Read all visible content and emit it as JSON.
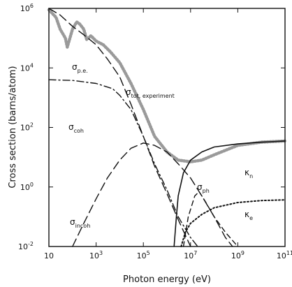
{
  "chart_data": {
    "type": "line",
    "xlabel": "Photon energy (eV)",
    "ylabel": "Cross section (barns/atom)",
    "x_scale": "log",
    "y_scale": "log",
    "xlim": [
      10,
      100000000000
    ],
    "ylim": [
      0.01,
      1000000
    ],
    "x_ticks": [
      {
        "value": 10,
        "base": "10",
        "exp": ""
      },
      {
        "value": 1000,
        "base": "10",
        "exp": "3"
      },
      {
        "value": 100000,
        "base": "10",
        "exp": "5"
      },
      {
        "value": 10000000,
        "base": "10",
        "exp": "7"
      },
      {
        "value": 1000000000,
        "base": "10",
        "exp": "9"
      },
      {
        "value": 100000000000,
        "base": "10",
        "exp": "11"
      }
    ],
    "y_ticks": [
      {
        "value": 0.01,
        "base": "10",
        "exp": "-2"
      },
      {
        "value": 1,
        "base": "10",
        "exp": "0"
      },
      {
        "value": 100,
        "base": "10",
        "exp": "2"
      },
      {
        "value": 10000,
        "base": "10",
        "exp": "4"
      },
      {
        "value": 1000000,
        "base": "10",
        "exp": "6"
      }
    ],
    "grid": false,
    "legend": "none",
    "series": [
      {
        "label": {
          "main": "σ",
          "sub": "tot, experiment"
        },
        "style": "dotted-band",
        "points": [
          [
            10,
            900000
          ],
          [
            20,
            500000
          ],
          [
            30,
            200000
          ],
          [
            50,
            100000
          ],
          [
            60,
            50000
          ],
          [
            100,
            200000
          ],
          [
            150,
            350000
          ],
          [
            200,
            300000
          ],
          [
            300,
            200000
          ],
          [
            400,
            90000
          ],
          [
            600,
            120000
          ],
          [
            1000,
            80000
          ],
          [
            2000,
            60000
          ],
          [
            4000,
            35000
          ],
          [
            10000,
            15000
          ],
          [
            30000,
            3000
          ],
          [
            100000,
            400
          ],
          [
            300000,
            50
          ],
          [
            1000000,
            15
          ],
          [
            3000000,
            8
          ],
          [
            10000000,
            7
          ],
          [
            30000000,
            8
          ],
          [
            100000000,
            12
          ],
          [
            1000000000,
            25
          ],
          [
            10000000000,
            32
          ],
          [
            100000000000,
            35
          ]
        ]
      },
      {
        "label": {
          "main": "σ",
          "sub": "coh"
        },
        "style": "dash-dot",
        "points": [
          [
            10,
            4000
          ],
          [
            100,
            3800
          ],
          [
            1000,
            3000
          ],
          [
            5000,
            2000
          ],
          [
            10000,
            1200
          ],
          [
            30000,
            400
          ],
          [
            100000,
            50
          ],
          [
            300000,
            6
          ],
          [
            1000000,
            0.8
          ],
          [
            3000000,
            0.1
          ],
          [
            10000000,
            0.02
          ],
          [
            20000000,
            0.01
          ]
        ]
      },
      {
        "label": {
          "main": "σ",
          "sub": "p.e."
        },
        "style": "long-dash",
        "points": [
          [
            10,
            1000000
          ],
          [
            30,
            600000
          ],
          [
            100,
            250000
          ],
          [
            300,
            130000
          ],
          [
            1000,
            60000
          ],
          [
            3000,
            20000
          ],
          [
            10000,
            5000
          ],
          [
            30000,
            600
          ],
          [
            100000,
            50
          ],
          [
            300000,
            5
          ],
          [
            1000000,
            0.6
          ],
          [
            3000000,
            0.08
          ],
          [
            10000000,
            0.01
          ]
        ]
      },
      {
        "label": {
          "main": "σ",
          "sub": "incoh"
        },
        "style": "long-dash",
        "points": [
          [
            100,
            0.01
          ],
          [
            300,
            0.06
          ],
          [
            1000,
            0.4
          ],
          [
            3000,
            2
          ],
          [
            10000,
            8
          ],
          [
            30000,
            20
          ],
          [
            100000,
            30
          ],
          [
            300000,
            25
          ],
          [
            1000000,
            15
          ],
          [
            3000000,
            6
          ],
          [
            10000000,
            2
          ],
          [
            30000000,
            0.5
          ],
          [
            100000000,
            0.1
          ],
          [
            300000000,
            0.02
          ],
          [
            600000000,
            0.01
          ]
        ]
      },
      {
        "label": {
          "main": "κ",
          "sub": "n"
        },
        "style": "solid",
        "points": [
          [
            2000000,
            0.01
          ],
          [
            2500000,
            0.1
          ],
          [
            3000000,
            0.5
          ],
          [
            5000000,
            3
          ],
          [
            10000000,
            8
          ],
          [
            30000000,
            15
          ],
          [
            100000000,
            22
          ],
          [
            1000000000,
            28
          ],
          [
            10000000000,
            32
          ],
          [
            100000000000,
            35
          ]
        ]
      },
      {
        "label": {
          "main": "κ",
          "sub": "e"
        },
        "style": "dotted",
        "points": [
          [
            4000000,
            0.01
          ],
          [
            6000000,
            0.03
          ],
          [
            10000000,
            0.06
          ],
          [
            30000000,
            0.12
          ],
          [
            100000000,
            0.2
          ],
          [
            1000000000,
            0.3
          ],
          [
            10000000000,
            0.35
          ],
          [
            100000000000,
            0.37
          ]
        ]
      },
      {
        "label": {
          "main": "σ",
          "sub": "ph"
        },
        "style": "dash",
        "points": [
          [
            5000000,
            0.01
          ],
          [
            8000000,
            0.1
          ],
          [
            15000000,
            0.5
          ],
          [
            23000000,
            0.7
          ],
          [
            40000000,
            0.35
          ],
          [
            100000000,
            0.1
          ],
          [
            300000000,
            0.03
          ],
          [
            1000000000,
            0.01
          ]
        ]
      }
    ]
  }
}
